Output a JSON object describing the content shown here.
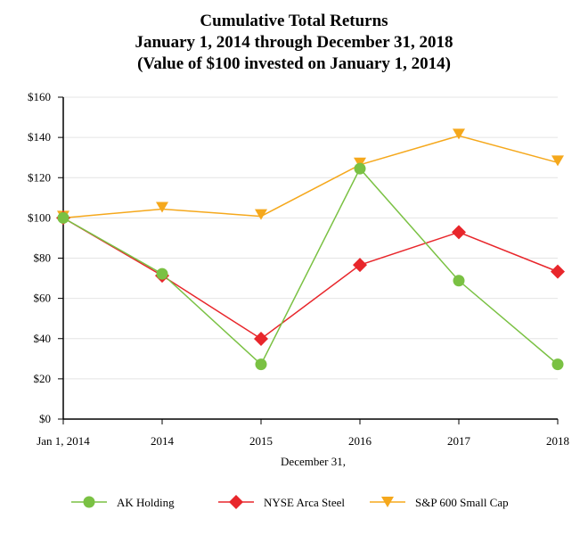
{
  "chart_data": {
    "type": "line",
    "title": [
      "Cumulative Total Returns",
      "January 1, 2014 through December 31, 2018",
      "(Value of $100 invested on January 1, 2014)"
    ],
    "xlabel": "December 31,",
    "ylabel": "",
    "categories": [
      "Jan 1, 2014",
      "2014",
      "2015",
      "2016",
      "2017",
      "2018"
    ],
    "ylim": [
      0,
      160
    ],
    "yticks": [
      "$0",
      "$20",
      "$40",
      "$60",
      "$80",
      "$100",
      "$120",
      "$140",
      "$160"
    ],
    "ytick_values": [
      0,
      20,
      40,
      60,
      80,
      100,
      120,
      140,
      160
    ],
    "grid": "horizontal",
    "legend_position": "bottom",
    "series": [
      {
        "name": "AK Holding",
        "color": "#7ac143",
        "marker": "circle",
        "values": [
          100,
          72.2,
          27.2,
          124.5,
          68.8,
          27.2
        ]
      },
      {
        "name": "NYSE Arca Steel",
        "color": "#e8262b",
        "marker": "diamond",
        "values": [
          100,
          71.3,
          39.9,
          76.6,
          92.9,
          73.3
        ]
      },
      {
        "name": "S&P 600 Small Cap",
        "color": "#f5a81c",
        "marker": "triangle-down",
        "values": [
          100,
          104.4,
          100.8,
          126.4,
          140.8,
          127.5
        ]
      }
    ]
  }
}
